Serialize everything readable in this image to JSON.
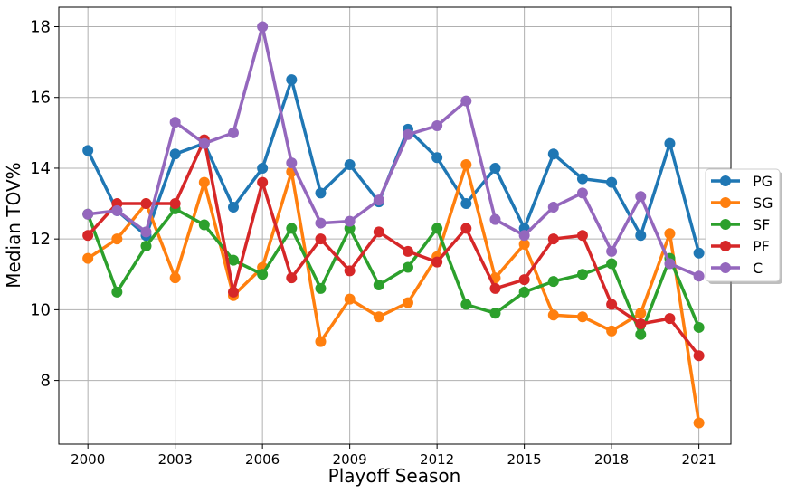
{
  "chart_data": {
    "type": "line",
    "title": "",
    "xlabel": "Playoff Season",
    "ylabel": "Median TOV%",
    "x": [
      2000,
      2001,
      2002,
      2003,
      2004,
      2005,
      2006,
      2007,
      2008,
      2009,
      2010,
      2011,
      2012,
      2013,
      2014,
      2015,
      2016,
      2017,
      2018,
      2019,
      2020,
      2021
    ],
    "xticks": [
      "2000",
      "2003",
      "2006",
      "2009",
      "2012",
      "2015",
      "2018",
      "2021"
    ],
    "yticks": [
      "8",
      "10",
      "12",
      "14",
      "16",
      "18"
    ],
    "xlim": [
      1999.0,
      2022.1
    ],
    "ylim": [
      6.2,
      18.55
    ],
    "grid": true,
    "legend_position": "right",
    "series": [
      {
        "name": "PG",
        "color": "#1f77b4",
        "values": [
          14.5,
          12.8,
          12.1,
          14.4,
          14.7,
          12.9,
          14.0,
          16.5,
          13.3,
          14.1,
          13.05,
          15.1,
          14.3,
          13.0,
          14.0,
          12.3,
          14.4,
          13.7,
          13.6,
          12.1,
          14.7,
          11.6
        ]
      },
      {
        "name": "SG",
        "color": "#ff7f0e",
        "values": [
          11.45,
          12.0,
          13.0,
          10.9,
          13.6,
          10.4,
          11.2,
          13.9,
          9.1,
          10.3,
          9.8,
          10.2,
          11.5,
          14.1,
          10.9,
          11.85,
          9.85,
          9.8,
          9.4,
          9.9,
          12.15,
          6.8
        ]
      },
      {
        "name": "SF",
        "color": "#2ca02c",
        "values": [
          12.7,
          10.5,
          11.8,
          12.85,
          12.4,
          11.4,
          11.0,
          12.3,
          10.6,
          12.3,
          10.7,
          11.2,
          12.3,
          10.15,
          9.9,
          10.5,
          10.8,
          11.0,
          11.3,
          9.3,
          11.45,
          9.5
        ]
      },
      {
        "name": "PF",
        "color": "#d62728",
        "values": [
          12.1,
          13.0,
          13.0,
          13.0,
          14.8,
          10.5,
          13.6,
          10.9,
          12.0,
          11.1,
          12.2,
          11.65,
          11.35,
          12.3,
          10.6,
          10.85,
          12.0,
          12.1,
          10.15,
          9.6,
          9.75,
          8.7
        ]
      },
      {
        "name": "C",
        "color": "#9467bd",
        "values": [
          12.7,
          12.8,
          12.2,
          15.3,
          14.7,
          15.0,
          18.0,
          14.15,
          12.45,
          12.5,
          13.1,
          14.95,
          15.2,
          15.9,
          12.55,
          12.1,
          12.9,
          13.3,
          11.65,
          13.2,
          11.3,
          10.95
        ]
      }
    ]
  }
}
